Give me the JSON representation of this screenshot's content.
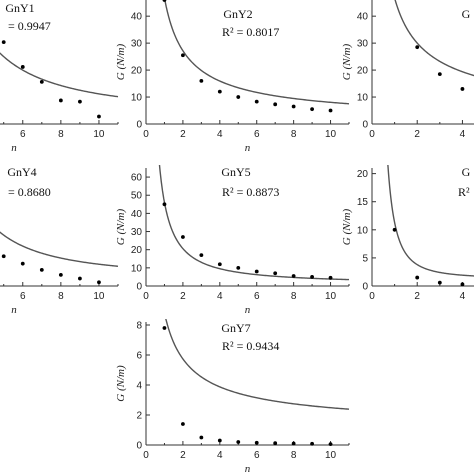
{
  "chart_data": [
    {
      "id": "GnY1",
      "type": "scatter",
      "title": "GnY1",
      "r2_label": "= 0.9947",
      "ylabel": "",
      "xlabel": "n",
      "xlim": [
        4.7,
        11
      ],
      "ylim": [
        0,
        10
      ],
      "xticks": [
        6,
        8,
        10
      ],
      "yticks": [],
      "points": {
        "x": [
          5,
          6,
          7,
          8,
          9,
          10
        ],
        "y": [
          6.6,
          4.6,
          3.4,
          1.9,
          1.8,
          0.6
        ]
      },
      "fit": {
        "a": 46,
        "b": 1.4,
        "k": 0.6
      }
    },
    {
      "id": "GnY2",
      "type": "scatter",
      "title": "GnY2",
      "r2_label": "R² = 0.8017",
      "ylabel": "G (N/m)",
      "xlabel": "n",
      "xlim": [
        0,
        11
      ],
      "ylim": [
        0,
        46
      ],
      "xticks": [
        0,
        2,
        4,
        6,
        8,
        10
      ],
      "yticks": [
        0,
        10,
        20,
        30,
        40
      ],
      "points": {
        "x": [
          1,
          2,
          3,
          4,
          5,
          6,
          7,
          8,
          9,
          10
        ],
        "y": [
          46,
          25.5,
          16,
          12,
          10,
          8.3,
          7.3,
          6.5,
          5.5,
          5
        ]
      },
      "fit": {
        "a": 46,
        "b": 0.8,
        "k": 0.75
      }
    },
    {
      "id": "GnY3",
      "type": "scatter",
      "title": "G",
      "r2_label": "",
      "ylabel": "G (N/m)",
      "xlabel": "",
      "xlim": [
        0,
        4.6
      ],
      "ylim": [
        0,
        46
      ],
      "xticks": [
        0,
        2,
        4
      ],
      "yticks": [
        0,
        10,
        20,
        30,
        40
      ],
      "points": {
        "x": [
          1,
          2,
          3,
          4
        ],
        "y": [
          47,
          28.5,
          18.5,
          13
        ]
      },
      "fit": {
        "a": 46,
        "b": 0.65,
        "k": 0.7
      }
    },
    {
      "id": "GnY4",
      "type": "scatter",
      "title": "GnY4",
      "r2_label": "= 0.8680",
      "ylabel": "",
      "xlabel": "n",
      "xlim": [
        4.7,
        11
      ],
      "ylim": [
        0,
        10
      ],
      "xticks": [
        6,
        8,
        10
      ],
      "yticks": [],
      "points": {
        "x": [
          5,
          6,
          7,
          8,
          9,
          10
        ],
        "y": [
          2.4,
          1.8,
          1.3,
          0.9,
          0.6,
          0.3
        ]
      },
      "fit": {
        "a": 46,
        "b": 1.6,
        "k": 0.6
      }
    },
    {
      "id": "GnY5",
      "type": "scatter",
      "title": "GnY5",
      "r2_label": "R² = 0.8873",
      "ylabel": "G (N/m)",
      "xlabel": "n",
      "xlim": [
        0,
        11
      ],
      "ylim": [
        0,
        65
      ],
      "xticks": [
        0,
        2,
        4,
        6,
        8,
        10
      ],
      "yticks": [
        0,
        10,
        20,
        30,
        40,
        50,
        60
      ],
      "points": {
        "x": [
          1,
          2,
          3,
          4,
          5,
          6,
          7,
          8,
          9,
          10
        ],
        "y": [
          45,
          27,
          17,
          12,
          10,
          8,
          7,
          5.5,
          5,
          4.5
        ]
      },
      "fit": {
        "a": 45,
        "b": 1.2,
        "k": 1.0
      }
    },
    {
      "id": "GnY6",
      "type": "scatter",
      "title": "G",
      "r2_label": "R²",
      "ylabel": "G (N/m)",
      "xlabel": "",
      "xlim": [
        0,
        4.6
      ],
      "ylim": [
        0,
        21
      ],
      "xticks": [
        0,
        2,
        4
      ],
      "yticks": [
        0,
        5,
        10,
        15,
        20
      ],
      "points": {
        "x": [
          1,
          2,
          3,
          4
        ],
        "y": [
          10,
          1.5,
          0.6,
          0.3
        ]
      },
      "fit": {
        "a": 10,
        "b": 2.0,
        "k": 1.3
      }
    },
    {
      "id": "GnY7",
      "type": "scatter",
      "title": "GnY7",
      "r2_label": "R² = 0.9434",
      "ylabel": "G (N/m)",
      "xlabel": "n",
      "xlim": [
        0,
        11
      ],
      "ylim": [
        0,
        8.2
      ],
      "xticks": [
        0,
        2,
        4,
        6,
        8,
        10
      ],
      "yticks": [
        0,
        2,
        4,
        6,
        8
      ],
      "points": {
        "x": [
          1,
          2,
          3,
          4,
          5,
          6,
          7,
          8,
          9,
          10
        ],
        "y": [
          7.8,
          1.4,
          0.5,
          0.3,
          0.2,
          0.15,
          0.12,
          0.1,
          0.08,
          0.06
        ]
      },
      "fit": {
        "a": 7.8,
        "b": 0.72,
        "k": 1.0
      }
    }
  ]
}
